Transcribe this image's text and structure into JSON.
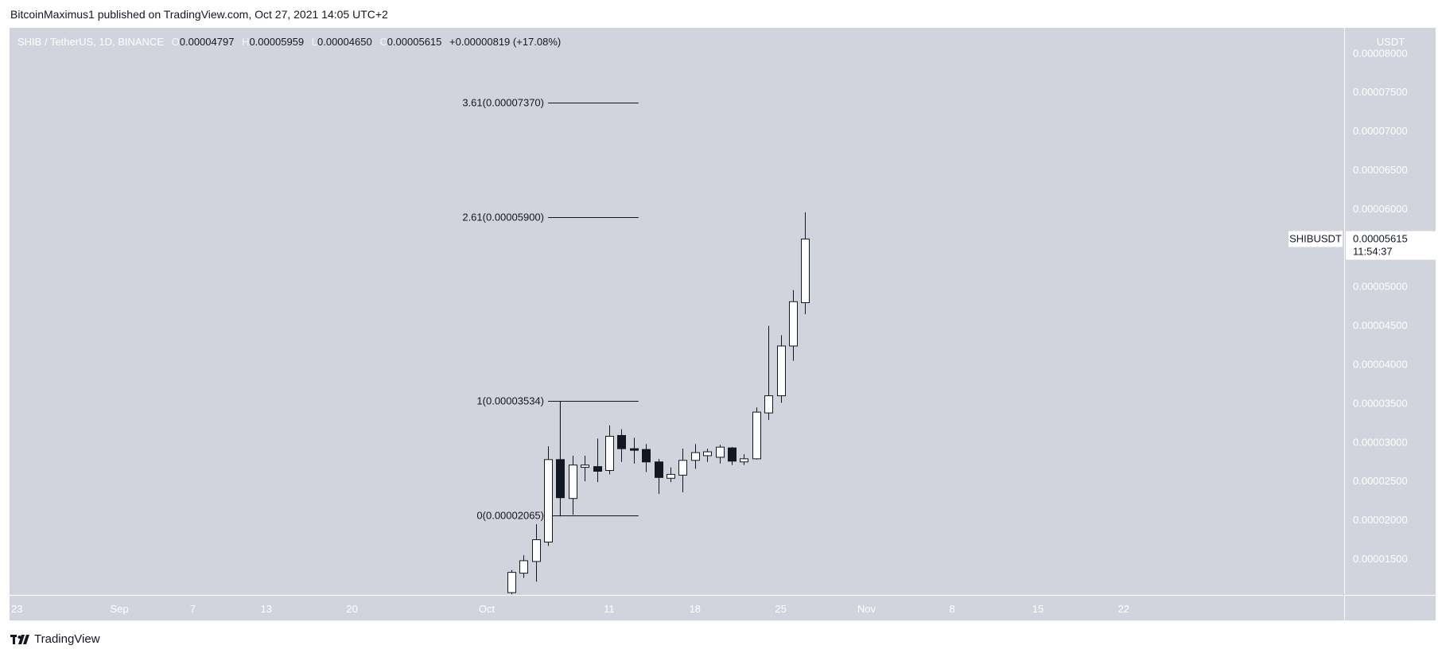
{
  "header": {
    "published_line": "BitcoinMaximus1 published on TradingView.com, Oct 27, 2021 14:05 UTC+2"
  },
  "legend": {
    "symbol": "SHIB / TetherUS, 1D, BINANCE",
    "o_label": "O",
    "o_value": "0.00004797",
    "h_label": "H",
    "h_value": "0.00005959",
    "l_label": "L",
    "l_value": "0.00004650",
    "c_label": "C",
    "c_value": "0.00005615",
    "change": "+0.00000819 (+17.08%)"
  },
  "price_axis": {
    "currency": "USDT",
    "labels": [
      "0.00008000",
      "0.00007500",
      "0.00007000",
      "0.00006500",
      "0.00006000",
      "0.00005500",
      "0.00005000",
      "0.00004500",
      "0.00004000",
      "0.00003500",
      "0.00003000",
      "0.00002500",
      "0.00002000",
      "0.00001500"
    ]
  },
  "last_price": {
    "symbol": "SHIBUSDT",
    "price": "0.00005615",
    "countdown": "11:54:37"
  },
  "footer": {
    "brand": "TradingView"
  },
  "colors": {
    "background": "#d1d4dc",
    "up_body": "#ffffff",
    "down_body": "#131722",
    "wick": "#131722",
    "axis_text": "#ffffff"
  },
  "chart_data": {
    "type": "candlestick",
    "title": "SHIB / TetherUS, 1D, BINANCE",
    "xlabel": "",
    "ylabel": "USDT",
    "ylim": [
      1.05e-05,
      8.33e-05
    ],
    "x_ticks": [
      {
        "label": "23",
        "day": -8
      },
      {
        "label": "Sep",
        "day": 1
      },
      {
        "label": "7",
        "day": 7
      },
      {
        "label": "13",
        "day": 13
      },
      {
        "label": "20",
        "day": 20
      },
      {
        "label": "Oct",
        "day": 31
      },
      {
        "label": "11",
        "day": 41
      },
      {
        "label": "18",
        "day": 48
      },
      {
        "label": "25",
        "day": 55
      },
      {
        "label": "Nov",
        "day": 62
      },
      {
        "label": "8",
        "day": 69
      },
      {
        "label": "15",
        "day": 76
      },
      {
        "label": "22",
        "day": 83
      }
    ],
    "fib_levels": [
      {
        "label": "3.61(0.00007370)",
        "value": 7.37e-05,
        "day_from": 36,
        "day_to": 43
      },
      {
        "label": "2.61(0.00005900)",
        "value": 5.9e-05,
        "day_from": 36,
        "day_to": 43
      },
      {
        "label": "1(0.00003534)",
        "value": 3.534e-05,
        "day_from": 36,
        "day_to": 43
      },
      {
        "label": "0(0.00002065)",
        "value": 2.065e-05,
        "day_from": 36,
        "day_to": 43
      }
    ],
    "fib_connector": {
      "day": 37,
      "from": 2.065e-05,
      "to": 3.534e-05
    },
    "candles": [
      {
        "date": "2021-10-03",
        "day": 33,
        "o": 1.07e-05,
        "h": 1.36e-05,
        "l": 1.04e-05,
        "c": 1.33e-05
      },
      {
        "date": "2021-10-04",
        "day": 34,
        "o": 1.32e-05,
        "h": 1.55e-05,
        "l": 1.26e-05,
        "c": 1.48e-05
      },
      {
        "date": "2021-10-05",
        "day": 35,
        "o": 1.47e-05,
        "h": 1.95e-05,
        "l": 1.21e-05,
        "c": 1.75e-05
      },
      {
        "date": "2021-10-06",
        "day": 36,
        "o": 1.72e-05,
        "h": 2.95e-05,
        "l": 1.67e-05,
        "c": 2.78e-05
      },
      {
        "date": "2021-10-07",
        "day": 37,
        "o": 2.78e-05,
        "h": 3.53e-05,
        "l": 2.05e-05,
        "c": 2.29e-05
      },
      {
        "date": "2021-10-08",
        "day": 38,
        "o": 2.28e-05,
        "h": 2.83e-05,
        "l": 2.07e-05,
        "c": 2.71e-05
      },
      {
        "date": "2021-10-09",
        "day": 39,
        "o": 2.68e-05,
        "h": 2.83e-05,
        "l": 2.5e-05,
        "c": 2.71e-05
      },
      {
        "date": "2021-10-10",
        "day": 40,
        "o": 2.69e-05,
        "h": 3.05e-05,
        "l": 2.49e-05,
        "c": 2.63e-05
      },
      {
        "date": "2021-10-11",
        "day": 41,
        "o": 2.64e-05,
        "h": 3.22e-05,
        "l": 2.59e-05,
        "c": 3.08e-05
      },
      {
        "date": "2021-10-12",
        "day": 42,
        "o": 3.09e-05,
        "h": 3.17e-05,
        "l": 2.75e-05,
        "c": 2.92e-05
      },
      {
        "date": "2021-10-13",
        "day": 43,
        "o": 2.92e-05,
        "h": 3.06e-05,
        "l": 2.73e-05,
        "c": 2.9e-05
      },
      {
        "date": "2021-10-14",
        "day": 44,
        "o": 2.91e-05,
        "h": 2.98e-05,
        "l": 2.62e-05,
        "c": 2.75e-05
      },
      {
        "date": "2021-10-15",
        "day": 45,
        "o": 2.75e-05,
        "h": 2.79e-05,
        "l": 2.34e-05,
        "c": 2.55e-05
      },
      {
        "date": "2021-10-16",
        "day": 46,
        "o": 2.54e-05,
        "h": 2.68e-05,
        "l": 2.49e-05,
        "c": 2.59e-05
      },
      {
        "date": "2021-10-17",
        "day": 47,
        "o": 2.58e-05,
        "h": 2.92e-05,
        "l": 2.36e-05,
        "c": 2.77e-05
      },
      {
        "date": "2021-10-18",
        "day": 48,
        "o": 2.77e-05,
        "h": 2.98e-05,
        "l": 2.66e-05,
        "c": 2.87e-05
      },
      {
        "date": "2021-10-19",
        "day": 49,
        "o": 2.83e-05,
        "h": 2.92e-05,
        "l": 2.75e-05,
        "c": 2.88e-05
      },
      {
        "date": "2021-10-20",
        "day": 50,
        "o": 2.81e-05,
        "h": 2.97e-05,
        "l": 2.73e-05,
        "c": 2.94e-05
      },
      {
        "date": "2021-10-21",
        "day": 51,
        "o": 2.93e-05,
        "h": 2.94e-05,
        "l": 2.71e-05,
        "c": 2.76e-05
      },
      {
        "date": "2021-10-22",
        "day": 52,
        "o": 2.75e-05,
        "h": 2.85e-05,
        "l": 2.71e-05,
        "c": 2.79e-05
      },
      {
        "date": "2021-10-23",
        "day": 53,
        "o": 2.79e-05,
        "h": 3.45e-05,
        "l": 2.78e-05,
        "c": 3.39e-05
      },
      {
        "date": "2021-10-24",
        "day": 54,
        "o": 3.38e-05,
        "h": 4.5e-05,
        "l": 3.29e-05,
        "c": 3.6e-05
      },
      {
        "date": "2021-10-25",
        "day": 55,
        "o": 3.6e-05,
        "h": 4.38e-05,
        "l": 3.51e-05,
        "c": 4.24e-05
      },
      {
        "date": "2021-10-26",
        "day": 56,
        "o": 4.24e-05,
        "h": 4.96e-05,
        "l": 4.05e-05,
        "c": 4.81e-05
      },
      {
        "date": "2021-10-27",
        "day": 57,
        "o": 4.797e-05,
        "h": 5.959e-05,
        "l": 4.65e-05,
        "c": 5.615e-05
      }
    ]
  }
}
